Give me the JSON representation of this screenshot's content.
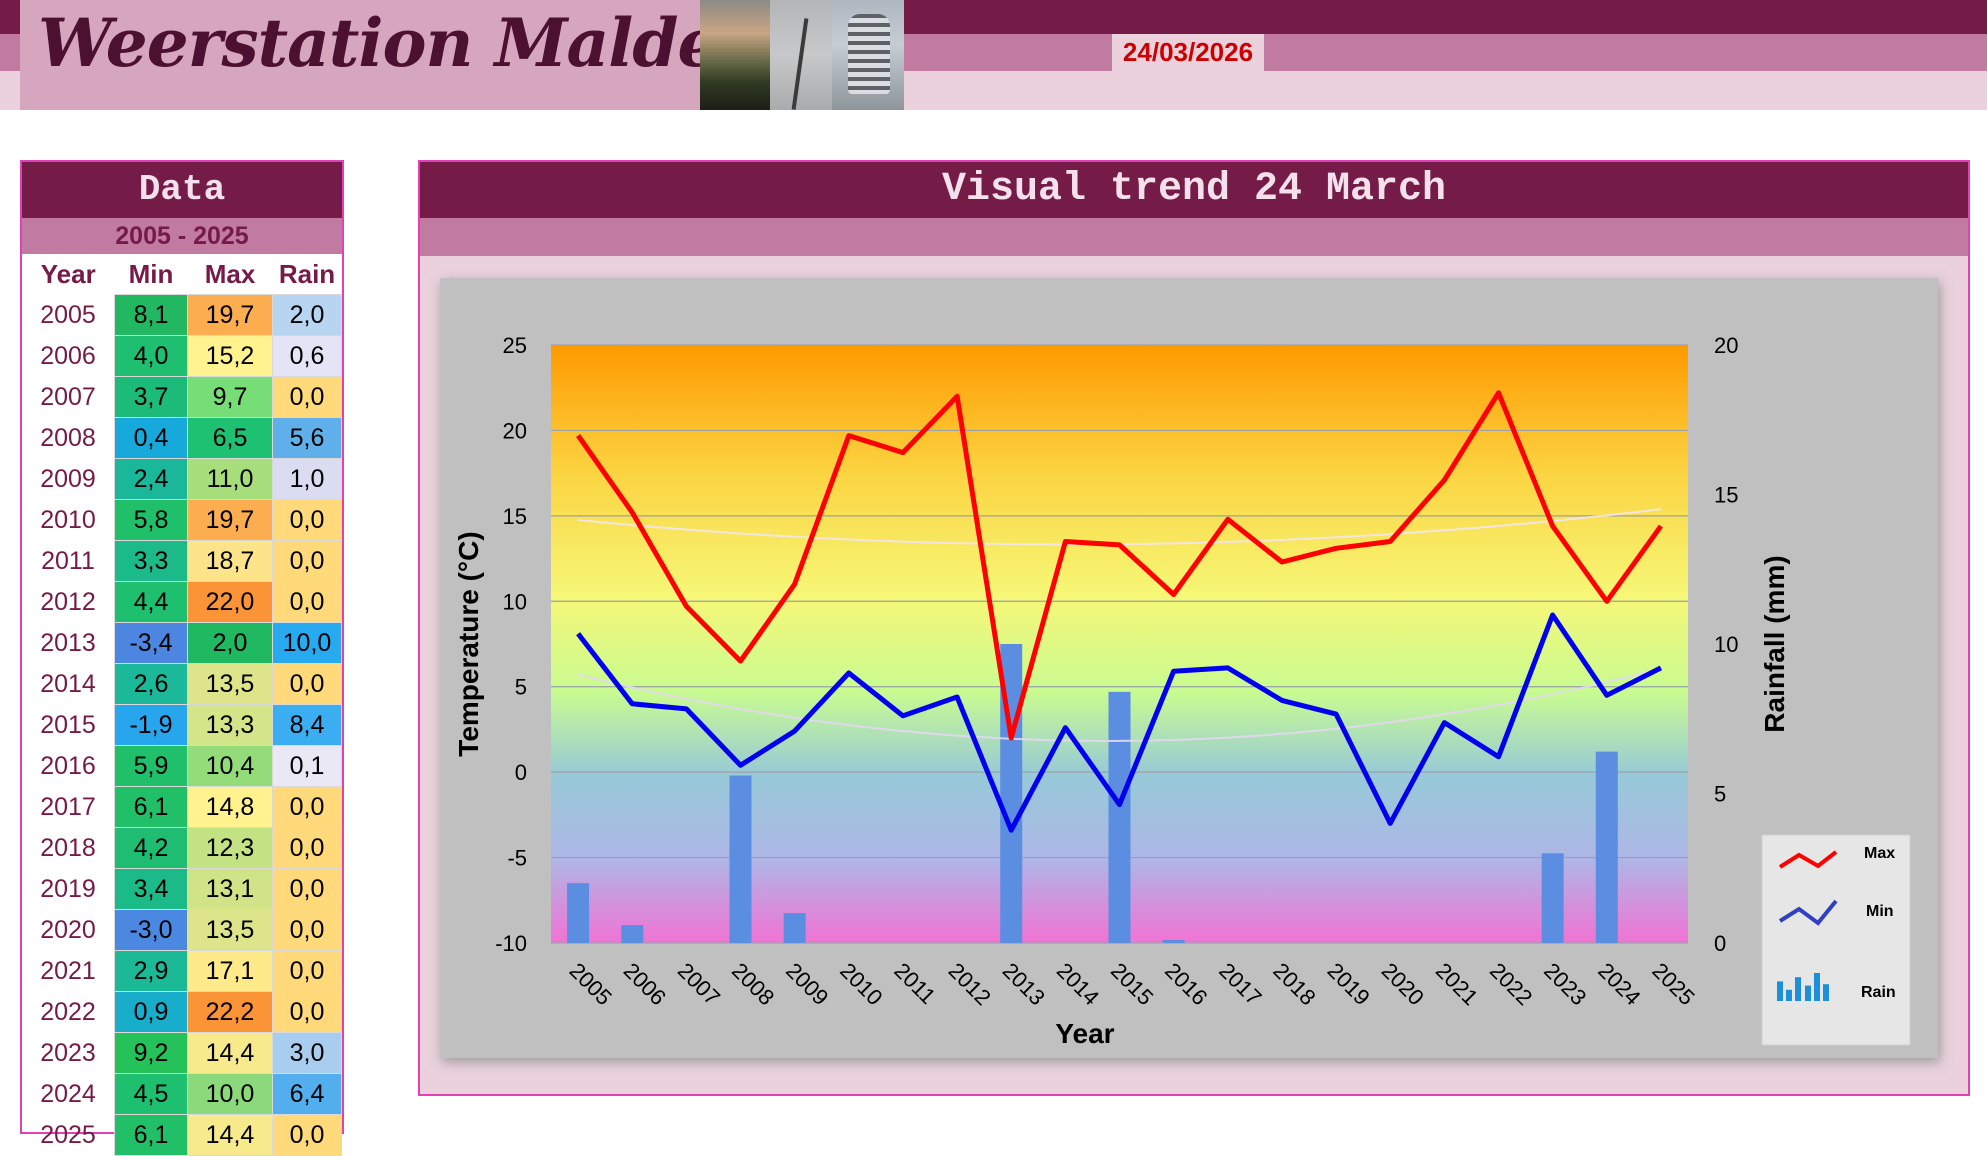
{
  "header": {
    "site_title": "Weerstation Malderen",
    "date": "24/03/2026"
  },
  "data_panel": {
    "title": "Data",
    "range": "2005 - 2025",
    "columns": [
      "Year",
      "Min",
      "Max",
      "Rain"
    ],
    "rows": [
      {
        "year": "2005",
        "min": "8,1",
        "max": "19,7",
        "rain": "2,0",
        "min_color": "#22b861",
        "max_color": "#fbad4f",
        "rain_color": "#b7d4f0"
      },
      {
        "year": "2006",
        "min": "4,0",
        "max": "15,2",
        "rain": "0,6",
        "min_color": "#1fbf71",
        "max_color": "#fff390",
        "rain_color": "#e4e4f6"
      },
      {
        "year": "2007",
        "min": "3,7",
        "max": "9,7",
        "rain": "0,0",
        "min_color": "#1dbb7a",
        "max_color": "#77dd77",
        "rain_color": "#ffd97a"
      },
      {
        "year": "2008",
        "min": "0,4",
        "max": "6,5",
        "rain": "5,6",
        "min_color": "#16a9d9",
        "max_color": "#1ec071",
        "rain_color": "#5fb0ea"
      },
      {
        "year": "2009",
        "min": "2,4",
        "max": "11,0",
        "rain": "1,0",
        "min_color": "#1bb79a",
        "max_color": "#a6de7c",
        "rain_color": "#dadcf2"
      },
      {
        "year": "2010",
        "min": "5,8",
        "max": "19,7",
        "rain": "0,0",
        "min_color": "#20c06a",
        "max_color": "#fbad4f",
        "rain_color": "#ffd97a"
      },
      {
        "year": "2011",
        "min": "3,3",
        "max": "18,7",
        "rain": "0,0",
        "min_color": "#1cba88",
        "max_color": "#fde48a",
        "rain_color": "#ffd97a"
      },
      {
        "year": "2012",
        "min": "4,4",
        "max": "22,0",
        "rain": "0,0",
        "min_color": "#1fbf70",
        "max_color": "#fb9437",
        "rain_color": "#ffd97a"
      },
      {
        "year": "2013",
        "min": "-3,4",
        "max": "2,0",
        "rain": "10,0",
        "min_color": "#4d86e0",
        "max_color": "#20b860",
        "rain_color": "#27aaf0"
      },
      {
        "year": "2014",
        "min": "2,6",
        "max": "13,5",
        "rain": "0,0",
        "min_color": "#1bb899",
        "max_color": "#dde48a",
        "rain_color": "#ffd97a"
      },
      {
        "year": "2015",
        "min": "-1,9",
        "max": "13,3",
        "rain": "8,4",
        "min_color": "#27a6ee",
        "max_color": "#d4e488",
        "rain_color": "#3aaef0"
      },
      {
        "year": "2016",
        "min": "5,9",
        "max": "10,4",
        "rain": "0,1",
        "min_color": "#20c06a",
        "max_color": "#94db7a",
        "rain_color": "#ebe8f6"
      },
      {
        "year": "2017",
        "min": "6,1",
        "max": "14,8",
        "rain": "0,0",
        "min_color": "#21c068",
        "max_color": "#fff28f",
        "rain_color": "#ffd97a"
      },
      {
        "year": "2018",
        "min": "4,2",
        "max": "12,3",
        "rain": "0,0",
        "min_color": "#1fbd72",
        "max_color": "#c2e283",
        "rain_color": "#ffd97a"
      },
      {
        "year": "2019",
        "min": "3,4",
        "max": "13,1",
        "rain": "0,0",
        "min_color": "#1cba88",
        "max_color": "#d0e387",
        "rain_color": "#ffd97a"
      },
      {
        "year": "2020",
        "min": "-3,0",
        "max": "13,5",
        "rain": "0,0",
        "min_color": "#4a88e2",
        "max_color": "#dde48a",
        "rain_color": "#ffd97a"
      },
      {
        "year": "2021",
        "min": "2,9",
        "max": "17,1",
        "rain": "0,0",
        "min_color": "#1cb996",
        "max_color": "#fee98b",
        "rain_color": "#ffd97a"
      },
      {
        "year": "2022",
        "min": "0,9",
        "max": "22,2",
        "rain": "0,0",
        "min_color": "#18aecb",
        "max_color": "#fb9337",
        "rain_color": "#ffd97a"
      },
      {
        "year": "2023",
        "min": "9,2",
        "max": "14,4",
        "rain": "3,0",
        "min_color": "#25c25a",
        "max_color": "#f7ea8c",
        "rain_color": "#a9cdee"
      },
      {
        "year": "2024",
        "min": "4,5",
        "max": "10,0",
        "rain": "6,4",
        "min_color": "#1fbf70",
        "max_color": "#8bd97a",
        "rain_color": "#52aeec"
      },
      {
        "year": "2025",
        "min": "6,1",
        "max": "14,4",
        "rain": "0,0",
        "min_color": "#21c068",
        "max_color": "#f7ea8c",
        "rain_color": "#ffd97a"
      }
    ]
  },
  "chart_panel": {
    "title": "Visual  trend 24 March"
  },
  "chart_data": {
    "type": "line",
    "xlabel": "Year",
    "ylabel": "Temperature (°C)",
    "y2label": "Rainfall (mm)",
    "ylim": [
      -10,
      25
    ],
    "y2lim": [
      0,
      20
    ],
    "yticks": [
      "25",
      "20",
      "15",
      "10",
      "5",
      "0",
      "-5",
      "-10"
    ],
    "y2ticks": [
      "20",
      "15",
      "10",
      "5",
      "0"
    ],
    "grid": true,
    "legend_position": "bottom-right",
    "categories": [
      "2005",
      "2006",
      "2007",
      "2008",
      "2009",
      "2010",
      "2011",
      "2012",
      "2013",
      "2014",
      "2015",
      "2016",
      "2017",
      "2018",
      "2019",
      "2020",
      "2021",
      "2022",
      "2023",
      "2024",
      "2025"
    ],
    "series": [
      {
        "name": "Max",
        "type": "line",
        "color": "#ff0000",
        "values": [
          19.7,
          15.2,
          9.7,
          6.5,
          11.0,
          19.7,
          18.7,
          22.0,
          2.0,
          13.5,
          13.3,
          10.4,
          14.8,
          12.3,
          13.1,
          13.5,
          17.1,
          22.2,
          14.4,
          10.0,
          14.4
        ]
      },
      {
        "name": "Min",
        "type": "line",
        "color": "#0000ee",
        "values": [
          8.1,
          4.0,
          3.7,
          0.4,
          2.4,
          5.8,
          3.3,
          4.4,
          -3.4,
          2.6,
          -1.9,
          5.9,
          6.1,
          4.2,
          3.4,
          -3.0,
          2.9,
          0.9,
          9.2,
          4.5,
          6.1
        ]
      },
      {
        "name": "Rain",
        "type": "bar",
        "axis": "y2",
        "color": "#5b8ee0",
        "values": [
          2.0,
          0.6,
          0.0,
          5.6,
          1.0,
          0.0,
          0.0,
          0.0,
          10.0,
          0.0,
          8.4,
          0.1,
          0.0,
          0.0,
          0.0,
          0.0,
          0.0,
          0.0,
          3.0,
          6.4,
          0.0
        ]
      }
    ]
  }
}
